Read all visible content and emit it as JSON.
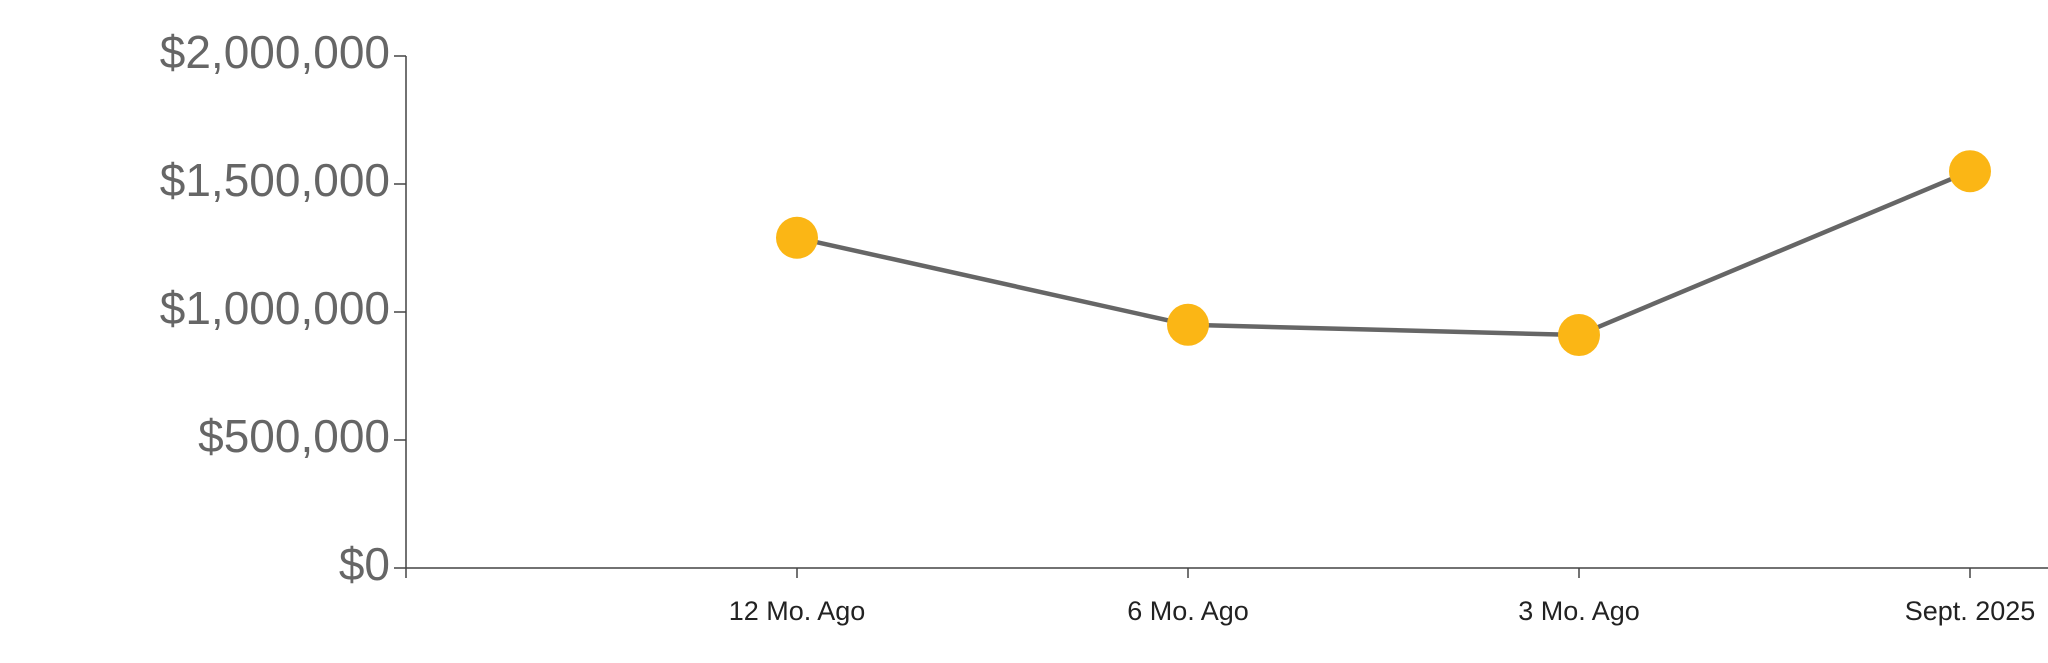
{
  "chart_data": {
    "type": "line",
    "categories": [
      null,
      "12 Mo. Ago",
      "6 Mo. Ago",
      "3 Mo. Ago",
      "Sept. 2025"
    ],
    "series": [
      {
        "name": null,
        "color": "#666666",
        "marker_color": "#fbb615",
        "values": [
          null,
          1290000,
          950000,
          910000,
          1550000
        ]
      }
    ],
    "ylim": [
      0,
      2000000
    ],
    "yticks": [
      {
        "value": 0,
        "label": "$0"
      },
      {
        "value": 500000,
        "label": "$500,000"
      },
      {
        "value": 1000000,
        "label": "$1,000,000"
      },
      {
        "value": 1500000,
        "label": "$1,500,000"
      },
      {
        "value": 2000000,
        "label": "$2,000,000"
      }
    ],
    "grid": false
  }
}
